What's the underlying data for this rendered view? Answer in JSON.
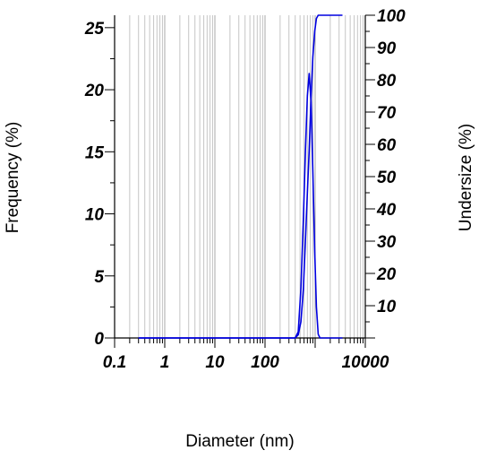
{
  "chart_data": {
    "type": "line",
    "title": "",
    "xlabel": "Diameter (nm)",
    "ylabel_left": "Frequency (%)",
    "ylabel_right": "Undersize (%)",
    "x_scale": "log",
    "xlim": [
      0.1,
      10000
    ],
    "ylim_left": [
      0,
      26
    ],
    "ylim_right": [
      0,
      100
    ],
    "x_tick_labels": [
      "0.1",
      "1",
      "10",
      "100",
      "10000"
    ],
    "y_left_tick_labels": [
      "0",
      "5",
      "10",
      "15",
      "20",
      "25"
    ],
    "y_right_tick_labels": [
      "10",
      "20",
      "30",
      "40",
      "50",
      "60",
      "70",
      "80",
      "90",
      "100"
    ],
    "grid": true,
    "line_color": "#0000e0",
    "series": [
      {
        "axis": "left",
        "x": [
          0.3,
          400,
          460,
          520,
          580,
          640,
          700,
          760,
          830,
          900,
          980,
          1060,
          1150,
          1250,
          1400,
          3500
        ],
        "values": [
          0,
          0,
          0.5,
          4,
          9.5,
          15,
          19.5,
          21.3,
          19,
          13.5,
          7,
          2.5,
          0.3,
          0,
          0,
          0
        ]
      },
      {
        "axis": "right",
        "x": [
          0.3,
          400,
          460,
          520,
          580,
          640,
          700,
          760,
          830,
          900,
          980,
          1060,
          1150,
          1250,
          1400,
          3500
        ],
        "values": [
          0,
          0,
          1,
          5,
          15,
          30,
          45,
          58,
          75,
          87,
          95,
          99,
          100,
          100,
          100,
          100
        ]
      }
    ]
  }
}
